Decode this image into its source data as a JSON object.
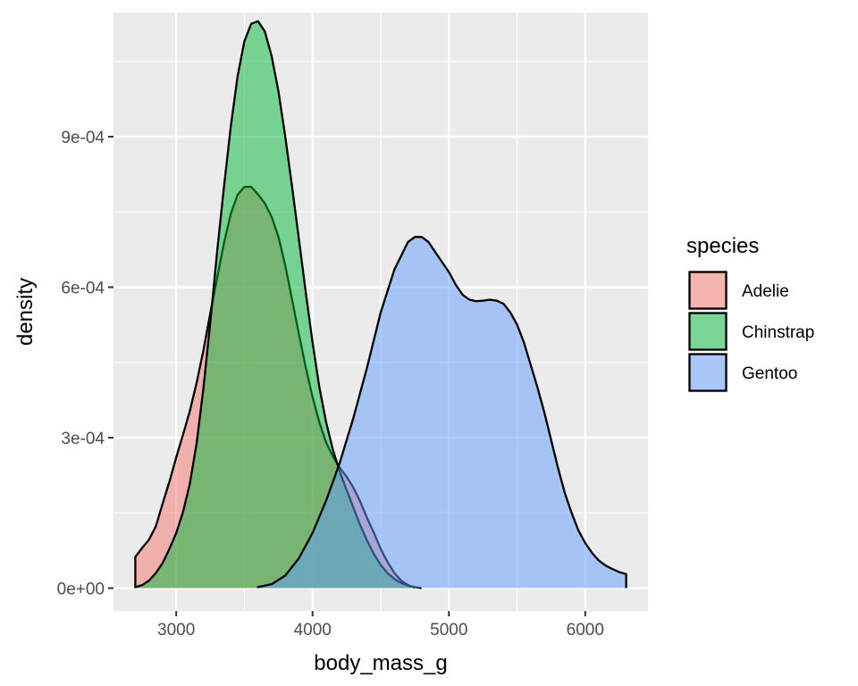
{
  "chart_data": {
    "type": "area",
    "subtype": "density",
    "xlabel": "body_mass_g",
    "ylabel": "density",
    "xlim": [
      2540,
      6460
    ],
    "ylim": [
      -4.55e-05,
      0.0011475
    ],
    "x_ticks": [
      3000,
      4000,
      5000,
      6000
    ],
    "x_tick_labels": [
      "3000",
      "4000",
      "5000",
      "6000"
    ],
    "y_ticks": [
      0,
      0.0003,
      0.0006,
      0.0009
    ],
    "y_tick_labels": [
      "0e+00",
      "3e-04",
      "6e-04",
      "9e-04"
    ],
    "grid": true,
    "legend": {
      "title": "species",
      "position": "right"
    },
    "fill_alpha": 0.5,
    "series": [
      {
        "name": "Adelie",
        "color": "#F8766D",
        "x": [
          2700,
          2750,
          2800,
          2850,
          2900,
          2950,
          3000,
          3050,
          3100,
          3150,
          3200,
          3250,
          3300,
          3350,
          3400,
          3450,
          3500,
          3550,
          3600,
          3650,
          3700,
          3750,
          3800,
          3850,
          3900,
          3950,
          4000,
          4050,
          4100,
          4150,
          4200,
          4250,
          4300,
          4350,
          4400,
          4450,
          4500,
          4550,
          4600,
          4650,
          4700,
          4750
        ],
        "values": [
          6.22e-05,
          8e-05,
          9.66e-05,
          0.000123,
          0.000168,
          0.000212,
          0.000261,
          0.000306,
          0.000353,
          0.00041,
          0.000475,
          0.000548,
          0.000618,
          0.000688,
          0.000746,
          0.000784,
          0.0008,
          0.0008,
          0.000785,
          0.000767,
          0.00074,
          0.0007,
          0.000643,
          0.000575,
          0.000506,
          0.00044,
          0.000381,
          0.00033,
          0.00029,
          0.000262,
          0.00024,
          0.000222,
          0.0002,
          0.000172,
          0.00014,
          0.00011,
          7.8e-05,
          5.2e-05,
          3e-05,
          1.5e-05,
          6e-06,
          1e-06
        ]
      },
      {
        "name": "Chinstrap",
        "color": "#00BA38",
        "x": [
          2700,
          2750,
          2800,
          2850,
          2900,
          2950,
          3000,
          3050,
          3100,
          3150,
          3200,
          3250,
          3300,
          3350,
          3400,
          3450,
          3500,
          3550,
          3600,
          3650,
          3700,
          3750,
          3800,
          3850,
          3900,
          3950,
          4000,
          4050,
          4100,
          4150,
          4200,
          4250,
          4300,
          4350,
          4400,
          4450,
          4500,
          4550,
          4600,
          4650,
          4700,
          4750,
          4800
        ],
        "values": [
          2e-06,
          6e-06,
          1.5e-05,
          3e-05,
          5e-05,
          7.8e-05,
          0.00011,
          0.000152,
          0.000208,
          0.00029,
          0.0004,
          0.00053,
          0.00067,
          0.0008,
          0.00092,
          0.00102,
          0.00109,
          0.001125,
          0.00113,
          0.00111,
          0.00106,
          0.00099,
          0.0009,
          0.0008,
          0.000695,
          0.00059,
          0.00049,
          0.0004,
          0.00033,
          0.000275,
          0.000232,
          0.000195,
          0.00016,
          0.000125,
          9.5e-05,
          6.8e-05,
          4.6e-05,
          3e-05,
          1.8e-05,
          1e-05,
          5e-06,
          2e-06,
          0
        ]
      },
      {
        "name": "Gentoo",
        "color": "#619CFF",
        "x": [
          3600,
          3700,
          3800,
          3900,
          4000,
          4100,
          4200,
          4300,
          4400,
          4500,
          4600,
          4700,
          4750,
          4800,
          4850,
          4900,
          4950,
          5000,
          5050,
          5100,
          5150,
          5200,
          5250,
          5300,
          5350,
          5400,
          5450,
          5500,
          5550,
          5600,
          5650,
          5700,
          5750,
          5800,
          5850,
          5900,
          5950,
          6000,
          6050,
          6100,
          6150,
          6200,
          6250,
          6300
        ],
        "values": [
          2e-06,
          8e-06,
          2.5e-05,
          6e-05,
          0.00011,
          0.000175,
          0.00025,
          0.00034,
          0.00044,
          0.00055,
          0.000635,
          0.00069,
          0.0007,
          0.0007,
          0.00069,
          0.00067,
          0.00065,
          0.00063,
          0.000605,
          0.000585,
          0.000575,
          0.000572,
          0.000573,
          0.000575,
          0.000573,
          0.000567,
          0.00055,
          0.000525,
          0.00049,
          0.000445,
          0.0004,
          0.00035,
          0.000295,
          0.00024,
          0.00019,
          0.00015,
          0.000115,
          9e-05,
          7e-05,
          5.5e-05,
          4.5e-05,
          3.8e-05,
          3.2e-05,
          2.8e-05
        ]
      }
    ]
  }
}
